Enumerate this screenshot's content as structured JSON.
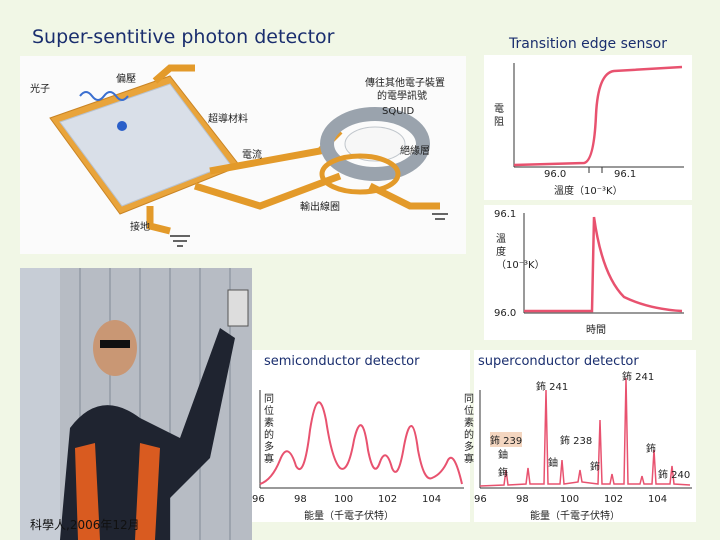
{
  "slide": {
    "title": "Super-sentitive photon detector",
    "tes_title": "Transition edge sensor",
    "footer": "科學人,2006年12月"
  },
  "diagram": {
    "labels": {
      "photon": "光子",
      "bias": "偏壓",
      "transmit": "傳往其他電子裝置",
      "transmit2": "的電學訊號",
      "superconductor": "超導材料",
      "squid": "SQUID",
      "insulator": "絕緣層",
      "current": "電流",
      "output_coil": "輸出線圈",
      "ground": "接地"
    }
  },
  "tes_top": {
    "ylabel": "電阻",
    "xlabel": "溫度（10⁻³K）",
    "tick_left": "96.0",
    "tick_right": "96.1"
  },
  "tes_bottom": {
    "ylabel": "溫度（10⁻³K）",
    "xlabel": "時間",
    "ytick_top": "96.1",
    "ytick_bottom": "96.0"
  },
  "semi": {
    "label": "semiconductor detector",
    "ylabel": "同位素的多寡",
    "xlabel": "能量（千電子伏特）",
    "ticks": [
      "96",
      "98",
      "100",
      "102",
      "104"
    ]
  },
  "super": {
    "label": "superconductor detector",
    "ylabel": "同位素的多寡",
    "xlabel": "能量（千電子伏特）",
    "ticks": [
      "96",
      "98",
      "100",
      "102",
      "104"
    ],
    "peaks": {
      "pu241": "鈽 241",
      "pu241b": "鈽 241",
      "pu239": "鈽 239",
      "pu238": "鈽 238",
      "u": "鈾",
      "u2": "鈾",
      "pu": "鈽",
      "pu240": "鈽 240",
      "pu_a": "鈽",
      "cm": "鋂"
    }
  },
  "colors": {
    "accent": "#e8526f",
    "orange": "#e39a2a",
    "photo_bg": "#8b96a8"
  }
}
